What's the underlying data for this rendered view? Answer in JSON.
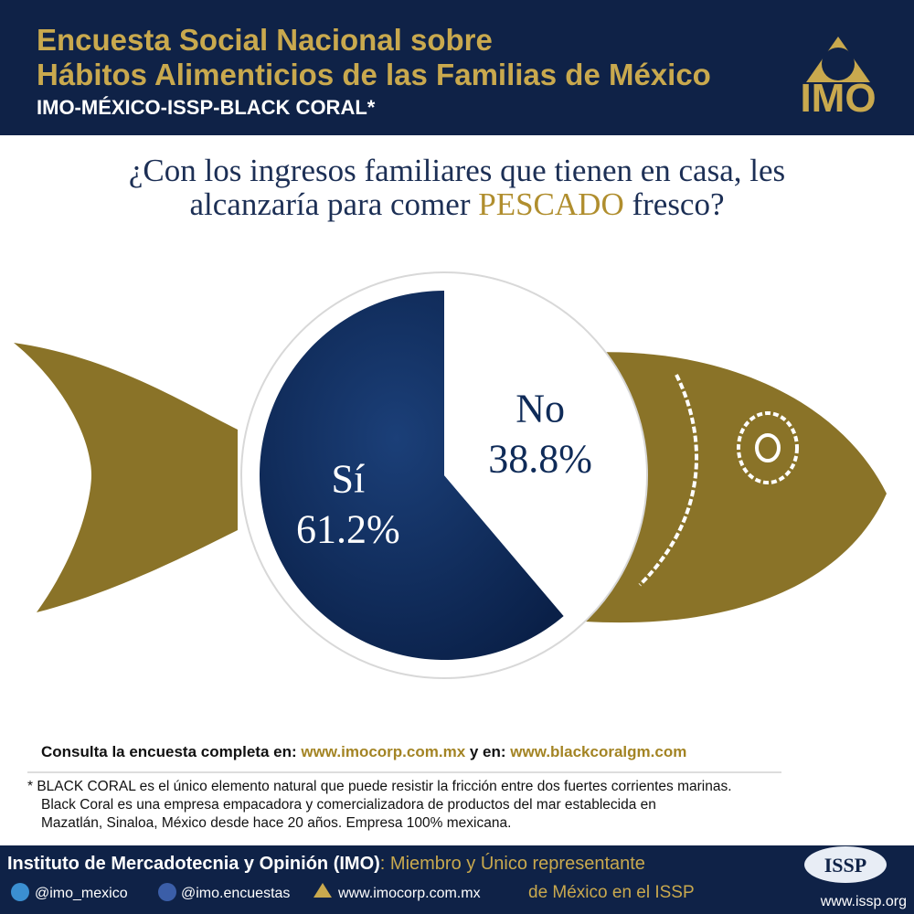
{
  "header": {
    "title_line1": "Encuesta Social Nacional sobre",
    "title_line2": "Hábitos Alimenticios de las Familias de México",
    "subtitle": "IMO-MÉXICO-ISSP-BLACK CORAL*",
    "logo": "IMO"
  },
  "question": {
    "line1": "¿Con los ingresos familiares que tienen en casa, les",
    "line2_start": "alcanzaría para comer ",
    "line2_highlight": "PESCADO",
    "line2_end": " fresco?"
  },
  "chart_data": {
    "type": "pie",
    "categories": [
      "Sí",
      "No"
    ],
    "values": [
      61.2,
      38.8
    ],
    "value_labels": [
      "61.2%",
      "38.8%"
    ],
    "colors": [
      "#0f2b58",
      "#ffffff"
    ]
  },
  "links": {
    "prefix": "Consulta la encuesta completa en: ",
    "link1": "www.imocorp.com.mx",
    "middle": " y en: ",
    "link2": "www.blackcoralgm.com"
  },
  "footnote": {
    "line1": "* BLACK CORAL es el único elemento natural que puede resistir la fricción entre dos fuertes corrientes marinas.",
    "line2": "Black Coral es una empresa empacadora y comercializadora de productos del mar establecida en",
    "line3": "Mazatlán, Sinaloa, México desde hace 20 años. Empresa 100% mexicana."
  },
  "footer": {
    "institute": "Instituto de Mercadotecnia y Opinión (IMO)",
    "member_line1": ": Miembro y Único representante",
    "member_line2": "de México en el ISSP",
    "twitter": "@imo_mexico",
    "facebook": "@imo.encuestas",
    "website": "www.imocorp.com.mx",
    "issp_logo": "ISSP",
    "issp_site": "www.issp.org"
  }
}
